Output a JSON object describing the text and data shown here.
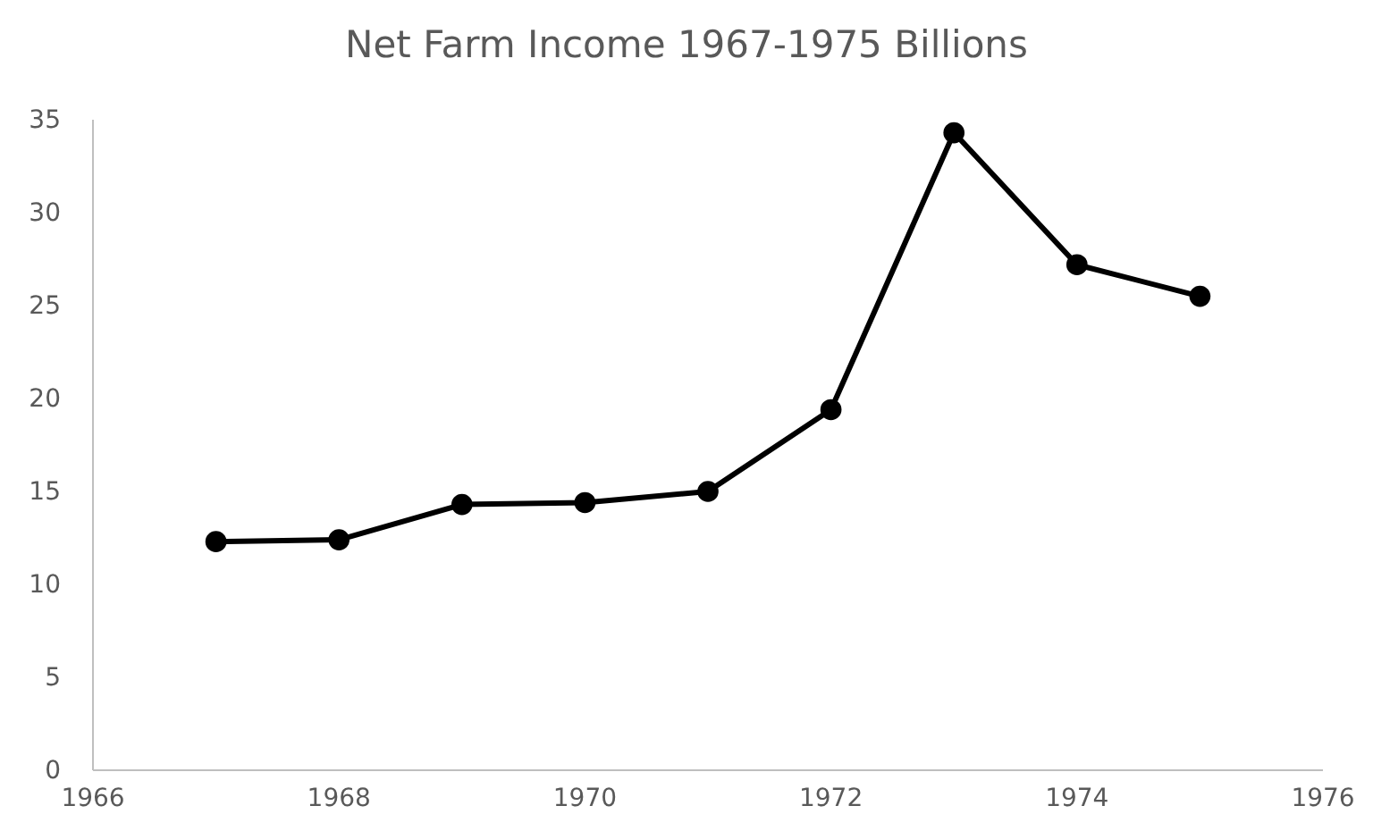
{
  "chart_data": {
    "type": "line",
    "title": "Net Farm Income 1967-1975 Billions",
    "x": [
      1967,
      1968,
      1969,
      1970,
      1971,
      1972,
      1973,
      1974,
      1975
    ],
    "series": [
      {
        "color": "#000000",
        "values": [
          12.3,
          12.4,
          14.3,
          14.4,
          15.0,
          19.4,
          34.3,
          27.2,
          25.5
        ]
      }
    ],
    "xlim": [
      1966,
      1976
    ],
    "xticks": [
      1966,
      1968,
      1970,
      1972,
      1974,
      1976
    ],
    "ylim": [
      0,
      35
    ],
    "yticks": [
      0,
      5,
      10,
      15,
      20,
      25,
      30,
      35
    ],
    "grid": false,
    "marker": "circle",
    "line_style": "solid"
  }
}
